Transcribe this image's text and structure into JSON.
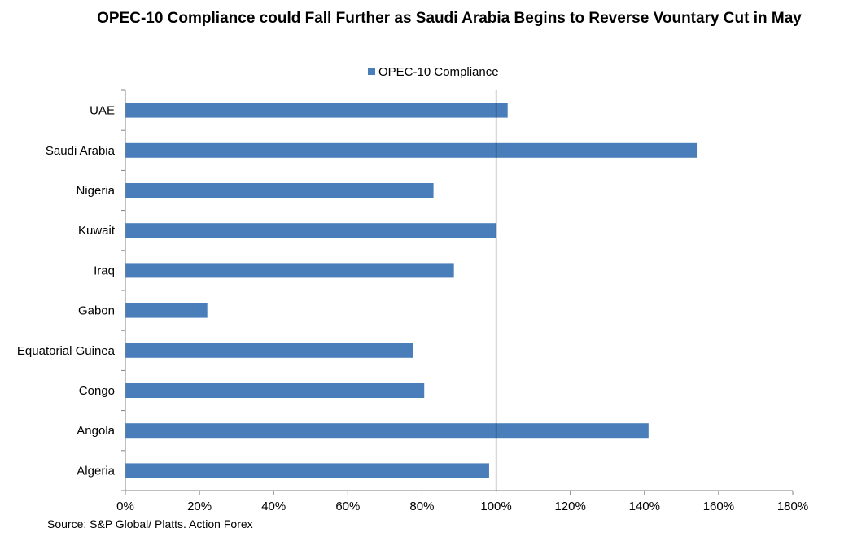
{
  "chart_data": {
    "type": "bar",
    "orientation": "horizontal",
    "title": "OPEC-10 Compliance could Fall Further as Saudi Arabia Begins to Reverse Vountary Cut in May",
    "categories": [
      "UAE",
      "Saudi Arabia",
      "Nigeria",
      "Kuwait",
      "Iraq",
      "Gabon",
      "Equatorial Guinea",
      "Congo",
      "Angola",
      "Algeria"
    ],
    "series": [
      {
        "name": "OPEC-10 Compliance",
        "values": [
          103,
          154,
          83,
          100,
          88.5,
          22,
          77.5,
          80.5,
          141,
          98
        ]
      }
    ],
    "xlim": [
      0,
      180
    ],
    "xticks": [
      0,
      20,
      40,
      60,
      80,
      100,
      120,
      140,
      160,
      180
    ],
    "tick_format": "{v}%",
    "reference_line": 100,
    "legend_position": "top",
    "xlabel": "",
    "ylabel": "",
    "colors": {
      "bar": "#4a7ebb",
      "axis": "#808080",
      "reference": "#000000"
    }
  },
  "source": "Source: S&P Global/ Platts. Action Forex"
}
